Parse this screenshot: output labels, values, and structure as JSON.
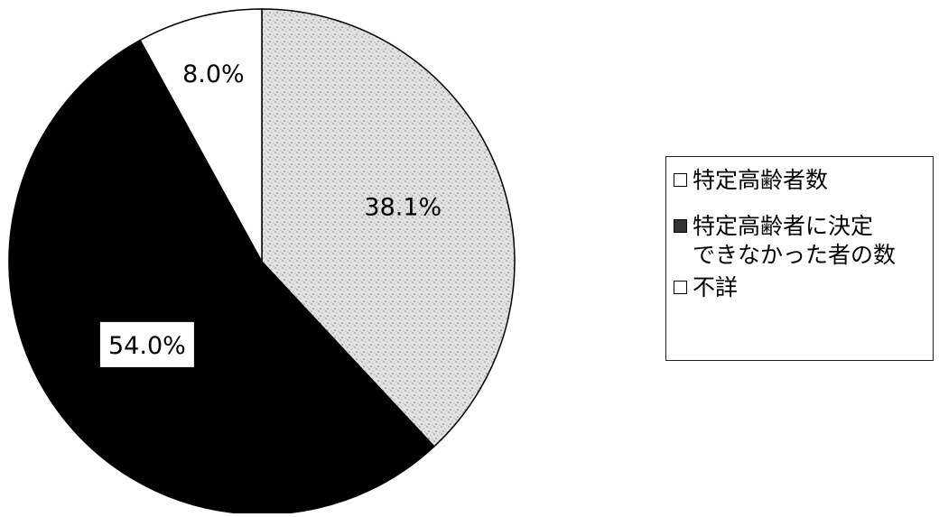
{
  "chart_data": {
    "type": "pie",
    "slices": [
      {
        "label": "特定高齢者数",
        "value": 38.1,
        "value_label": "38.1%",
        "color": "#d4d4d4",
        "pattern": "dotted-gray"
      },
      {
        "label": "特定高齢者に決定\nできなかった者の数",
        "value": 54.0,
        "value_label": "54.0%",
        "color": "#000000",
        "pattern": "solid-black"
      },
      {
        "label": "不詳",
        "value": 8.0,
        "value_label": "8.0%",
        "color": "#ffffff",
        "pattern": "white"
      }
    ],
    "start_angle": "12 o'clock",
    "direction": "clockwise",
    "legend_position": "right"
  }
}
